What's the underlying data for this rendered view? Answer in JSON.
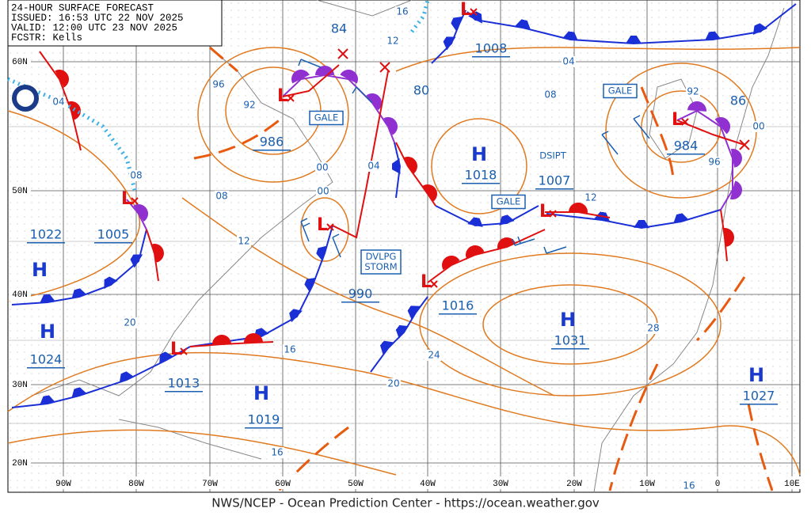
{
  "header": {
    "lines": [
      "24-HOUR SURFACE FORECAST",
      "ISSUED: 16:53 UTC 22 NOV 2025",
      "VALID: 12:00 UTC 23 NOV 2025",
      "FCSTR: Kells"
    ]
  },
  "latitude_labels": [
    "60N",
    "50N",
    "40N",
    "30N",
    "20N"
  ],
  "longitude_labels": [
    "90W",
    "80W",
    "70W",
    "60W",
    "50W",
    "40W",
    "30W",
    "20W",
    "10W",
    "0",
    "10E"
  ],
  "pressure_centers": [
    {
      "symbol": "H",
      "pressure": "1022"
    },
    {
      "symbol": "H",
      "pressure": "1024"
    },
    {
      "symbol": "H",
      "pressure": "1019"
    },
    {
      "symbol": "H",
      "pressure": "1018"
    },
    {
      "symbol": "H",
      "pressure": "1031"
    },
    {
      "symbol": "H",
      "pressure": "1027"
    },
    {
      "symbol": "L",
      "pressure": "986"
    },
    {
      "symbol": "L",
      "pressure": "1005"
    },
    {
      "symbol": "L",
      "pressure": "990"
    },
    {
      "symbol": "L",
      "pressure": "1013"
    },
    {
      "symbol": "L",
      "pressure": "1016"
    },
    {
      "symbol": "L",
      "pressure": "1007"
    },
    {
      "symbol": "L",
      "pressure": "984"
    },
    {
      "symbol": "L",
      "pressure": "1008"
    }
  ],
  "forecast_low_labels": [
    "84",
    "80",
    "86"
  ],
  "isobar_labels": [
    "16",
    "12",
    "96",
    "92",
    "04",
    "08",
    "08",
    "00",
    "00",
    "04",
    "12",
    "04",
    "08",
    "12",
    "92",
    "00",
    "96",
    "20",
    "16",
    "24",
    "20",
    "28",
    "16",
    "16"
  ],
  "warning_boxes": [
    {
      "lines": [
        "GALE"
      ]
    },
    {
      "lines": [
        "GALE"
      ]
    },
    {
      "lines": [
        "GALE"
      ]
    },
    {
      "lines": [
        "DSIPT"
      ]
    },
    {
      "lines": [
        "DVLPG",
        "STORM"
      ]
    }
  ],
  "footer": "NWS/NCEP - Ocean Prediction Center - https://ocean.weather.gov"
}
